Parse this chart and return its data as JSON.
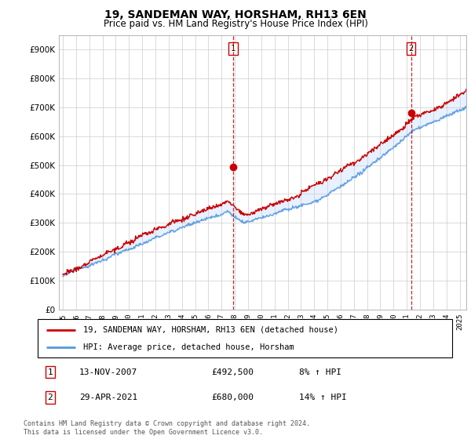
{
  "title": "19, SANDEMAN WAY, HORSHAM, RH13 6EN",
  "subtitle": "Price paid vs. HM Land Registry's House Price Index (HPI)",
  "ylim": [
    0,
    950000
  ],
  "yticks": [
    0,
    100000,
    200000,
    300000,
    400000,
    500000,
    600000,
    700000,
    800000,
    900000
  ],
  "ytick_labels": [
    "£0",
    "£100K",
    "£200K",
    "£300K",
    "£400K",
    "£500K",
    "£600K",
    "£700K",
    "£800K",
    "£900K"
  ],
  "xlim_start": 1994.7,
  "xlim_end": 2025.5,
  "xticks": [
    1995,
    1996,
    1997,
    1998,
    1999,
    2000,
    2001,
    2002,
    2003,
    2004,
    2005,
    2006,
    2007,
    2008,
    2009,
    2010,
    2011,
    2012,
    2013,
    2014,
    2015,
    2016,
    2017,
    2018,
    2019,
    2020,
    2021,
    2022,
    2023,
    2024,
    2025
  ],
  "line_red_color": "#cc0000",
  "line_blue_color": "#5599dd",
  "fill_color": "#cce0ff",
  "vline_color": "#cc0000",
  "transaction1_x": 2007.87,
  "transaction1_y": 492500,
  "transaction2_x": 2021.33,
  "transaction2_y": 680000,
  "legend_label1": "19, SANDEMAN WAY, HORSHAM, RH13 6EN (detached house)",
  "legend_label2": "HPI: Average price, detached house, Horsham",
  "table_row1_num": "1",
  "table_row1_date": "13-NOV-2007",
  "table_row1_price": "£492,500",
  "table_row1_hpi": "8% ↑ HPI",
  "table_row2_num": "2",
  "table_row2_date": "29-APR-2021",
  "table_row2_price": "£680,000",
  "table_row2_hpi": "14% ↑ HPI",
  "footnote": "Contains HM Land Registry data © Crown copyright and database right 2024.\nThis data is licensed under the Open Government Licence v3.0.",
  "bg_color": "#ffffff",
  "grid_color": "#cccccc"
}
